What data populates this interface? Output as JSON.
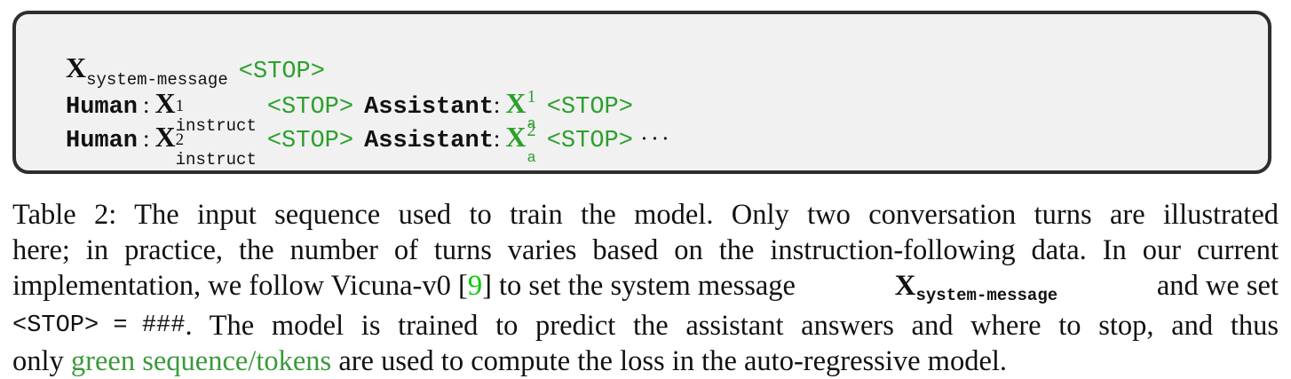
{
  "sequence": {
    "x_symbol": "X",
    "system_sub": "system-message",
    "stop_token": "<STOP>",
    "human_label": "Human",
    "assistant_label": "Assistant",
    "colon": ":",
    "instruct_sub": "instruct",
    "answer_sub": "a",
    "turn1_sup": "1",
    "turn2_sup": "2",
    "ellipsis": "···"
  },
  "caption": {
    "line1": "Table 2: The input sequence used to train the model. Only two conversation turns are illustrated",
    "line2": "here; in practice, the number of turns varies based on the instruction-following data. In our current",
    "line3_a": "implementation, we follow Vicuna-v0 [",
    "line3_cite": "9",
    "line3_b": "] to set the system message",
    "line3_x": "X",
    "line3_sub": "system-message",
    "line3_c": "and we set",
    "line4_token": "<STOP> = ###",
    "line4_rest": ". The model is trained to predict the assistant answers and where to stop, and thus",
    "line5_a": "only",
    "line5_green": "green sequence/tokens",
    "line5_b": "are used to compute the loss in the auto-regressive model."
  }
}
